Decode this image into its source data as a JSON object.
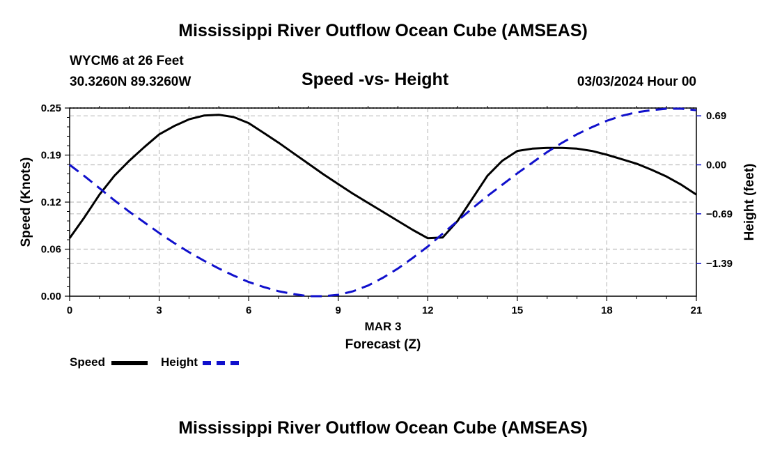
{
  "header": {
    "main_title": "Mississippi River Outflow Ocean Cube (AMSEAS)",
    "station": "WYCM6 at 26 Feet",
    "coordinates": "30.3260N  89.3260W",
    "subtitle": "Speed -vs- Height",
    "datetime": "03/03/2024 Hour 00"
  },
  "footer": {
    "main_title": "Mississippi River Outflow Ocean Cube (AMSEAS)"
  },
  "legend": {
    "speed_label": "Speed",
    "height_label": "Height"
  },
  "chart_data": {
    "type": "line",
    "title": "Speed -vs- Height",
    "xlabel": "Forecast (Z)",
    "xlabel_date": "MAR 3",
    "ylabel_left": "Speed (Knots)",
    "ylabel_right": "Height (feet)",
    "xlim": [
      0,
      21
    ],
    "ylim_left": [
      0,
      0.25
    ],
    "ylim_right": [
      -1.85,
      0.8
    ],
    "x_ticks": [
      0,
      3,
      6,
      9,
      12,
      15,
      18,
      21
    ],
    "x_tick_labels": [
      "0",
      "3",
      "6",
      "9",
      "12",
      "15",
      "18",
      "21"
    ],
    "y_left_ticks": [
      0.0,
      0.0625,
      0.125,
      0.1875,
      0.25
    ],
    "y_left_tick_labels": [
      "0.00",
      "0.06",
      "0.12",
      "0.19",
      "0.25"
    ],
    "y_right_ticks": [
      0.69,
      0.0,
      -0.69,
      -1.39
    ],
    "y_right_tick_labels": [
      "0.69",
      "0.00",
      "−0.69",
      "−1.39"
    ],
    "grid": true,
    "series": [
      {
        "name": "Speed",
        "axis": "left",
        "color": "#000000",
        "style": "solid",
        "x": [
          0,
          0.5,
          1,
          1.5,
          2,
          2.5,
          3,
          3.5,
          4,
          4.5,
          5,
          5.5,
          6,
          6.5,
          7,
          7.5,
          8,
          8.5,
          9,
          9.5,
          10,
          10.5,
          11,
          11.5,
          12,
          12.5,
          13,
          13.5,
          14,
          14.5,
          15,
          15.5,
          16,
          16.5,
          17,
          17.5,
          18,
          18.5,
          19,
          19.5,
          20,
          20.5,
          21
        ],
        "values": [
          0.077,
          0.105,
          0.135,
          0.16,
          0.18,
          0.198,
          0.215,
          0.226,
          0.235,
          0.24,
          0.241,
          0.238,
          0.23,
          0.217,
          0.204,
          0.19,
          0.176,
          0.162,
          0.149,
          0.136,
          0.124,
          0.112,
          0.1,
          0.088,
          0.077,
          0.078,
          0.1,
          0.13,
          0.16,
          0.18,
          0.193,
          0.196,
          0.197,
          0.197,
          0.196,
          0.193,
          0.188,
          0.182,
          0.176,
          0.168,
          0.159,
          0.148,
          0.135
        ]
      },
      {
        "name": "Height",
        "axis": "right",
        "color": "#1010cc",
        "style": "dashed",
        "x": [
          0,
          0.5,
          1,
          1.5,
          2,
          2.5,
          3,
          3.5,
          4,
          4.5,
          5,
          5.5,
          6,
          6.5,
          7,
          7.5,
          8,
          8.5,
          9,
          9.5,
          10,
          10.5,
          11,
          11.5,
          12,
          12.5,
          13,
          13.5,
          14,
          14.5,
          15,
          15.5,
          16,
          16.5,
          17,
          17.5,
          18,
          18.5,
          19,
          19.5,
          20,
          20.5,
          21
        ],
        "values": [
          0.0,
          -0.16,
          -0.33,
          -0.5,
          -0.66,
          -0.81,
          -0.96,
          -1.1,
          -1.23,
          -1.35,
          -1.46,
          -1.56,
          -1.65,
          -1.72,
          -1.78,
          -1.82,
          -1.85,
          -1.85,
          -1.83,
          -1.78,
          -1.7,
          -1.59,
          -1.46,
          -1.31,
          -1.15,
          -0.97,
          -0.79,
          -0.61,
          -0.44,
          -0.28,
          -0.12,
          0.03,
          0.18,
          0.31,
          0.43,
          0.53,
          0.62,
          0.69,
          0.74,
          0.77,
          0.79,
          0.79,
          0.77
        ]
      }
    ]
  }
}
